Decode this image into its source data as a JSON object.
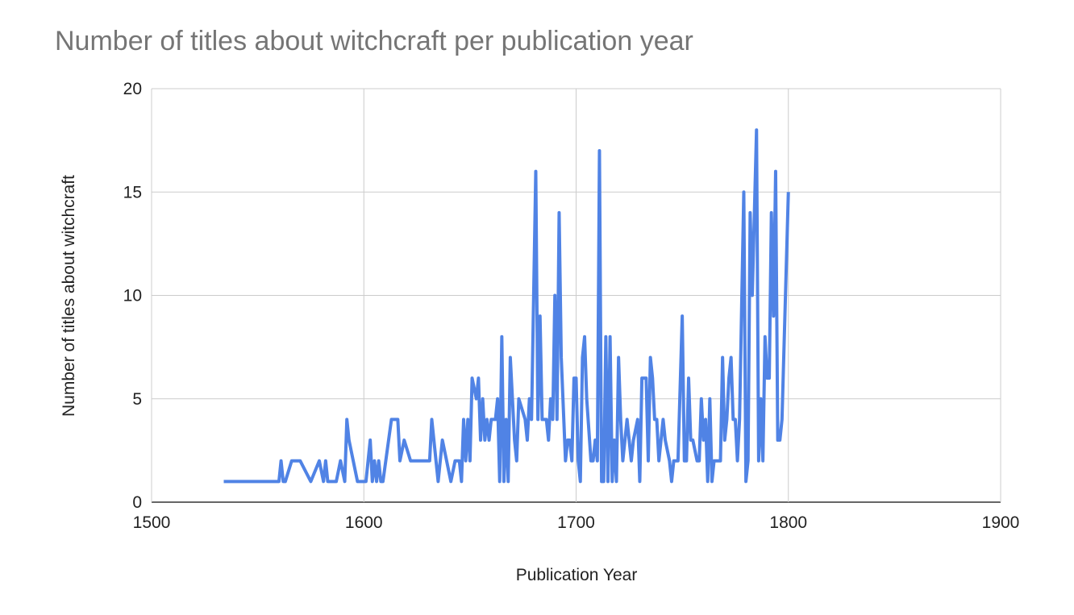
{
  "chart_data": {
    "type": "line",
    "title": "Number of titles about witchcraft per publication year",
    "xlabel": "Publication Year",
    "ylabel": "Number of titles about witchcraft",
    "color": "#5083e5",
    "grid": true,
    "xlim": [
      1500,
      1900
    ],
    "xticks": [
      1500,
      1600,
      1700,
      1800,
      1900
    ],
    "ylim": [
      0,
      20
    ],
    "yticks": [
      0,
      5,
      10,
      15,
      20
    ],
    "x": [
      1534,
      1560,
      1561,
      1562,
      1563,
      1566,
      1570,
      1575,
      1579,
      1581,
      1582,
      1583,
      1587,
      1589,
      1591,
      1592,
      1593,
      1597,
      1601,
      1603,
      1604,
      1605,
      1606,
      1607,
      1608,
      1609,
      1613,
      1616,
      1617,
      1619,
      1622,
      1631,
      1632,
      1634,
      1635,
      1637,
      1639,
      1641,
      1643,
      1645,
      1646,
      1647,
      1648,
      1649,
      1650,
      1651,
      1653,
      1654,
      1655,
      1656,
      1657,
      1658,
      1659,
      1660,
      1662,
      1663,
      1664,
      1665,
      1666,
      1667,
      1668,
      1669,
      1671,
      1672,
      1673,
      1676,
      1677,
      1678,
      1679,
      1681,
      1682,
      1683,
      1684,
      1686,
      1687,
      1688,
      1689,
      1690,
      1691,
      1692,
      1693,
      1695,
      1696,
      1697,
      1698,
      1699,
      1700,
      1701,
      1702,
      1703,
      1704,
      1705,
      1707,
      1708,
      1709,
      1710,
      1711,
      1712,
      1713,
      1714,
      1715,
      1716,
      1717,
      1718,
      1719,
      1720,
      1721,
      1722,
      1723,
      1724,
      1725,
      1726,
      1727,
      1729,
      1730,
      1731,
      1733,
      1734,
      1735,
      1736,
      1737,
      1738,
      1739,
      1741,
      1742,
      1744,
      1745,
      1746,
      1748,
      1750,
      1751,
      1752,
      1753,
      1754,
      1755,
      1757,
      1758,
      1759,
      1760,
      1761,
      1762,
      1763,
      1764,
      1765,
      1766,
      1768,
      1769,
      1770,
      1771,
      1772,
      1773,
      1774,
      1775,
      1776,
      1777,
      1779,
      1780,
      1781,
      1782,
      1783,
      1784,
      1785,
      1786,
      1787,
      1788,
      1789,
      1790,
      1791,
      1792,
      1793,
      1794,
      1795,
      1796,
      1797,
      1800
    ],
    "values": [
      1,
      1,
      2,
      1,
      1,
      2,
      2,
      1,
      2,
      1,
      2,
      1,
      1,
      2,
      1,
      4,
      3,
      1,
      1,
      3,
      1,
      2,
      1,
      2,
      1,
      1,
      4,
      4,
      2,
      3,
      2,
      2,
      4,
      2,
      1,
      3,
      2,
      1,
      2,
      2,
      1,
      4,
      2,
      4,
      2,
      6,
      5,
      6,
      3,
      5,
      3,
      4,
      3,
      4,
      4,
      5,
      1,
      8,
      1,
      4,
      1,
      7,
      3,
      2,
      5,
      4,
      3,
      5,
      4,
      16,
      4,
      9,
      4,
      4,
      3,
      5,
      4,
      10,
      4,
      14,
      7,
      2,
      3,
      3,
      2,
      6,
      6,
      2,
      1,
      7,
      8,
      5,
      2,
      2,
      3,
      2,
      17,
      1,
      1,
      8,
      1,
      8,
      1,
      3,
      1,
      7,
      4,
      2,
      3,
      4,
      3,
      2,
      3,
      4,
      1,
      6,
      6,
      2,
      7,
      6,
      4,
      4,
      2,
      4,
      3,
      2,
      1,
      2,
      2,
      9,
      2,
      2,
      6,
      3,
      3,
      2,
      2,
      5,
      3,
      4,
      1,
      5,
      1,
      2,
      2,
      2,
      7,
      3,
      4,
      6,
      7,
      4,
      4,
      2,
      4,
      15,
      1,
      2,
      14,
      10,
      14,
      18,
      2,
      5,
      2,
      8,
      6,
      6,
      14,
      9,
      16,
      3,
      3,
      4,
      15
    ]
  }
}
